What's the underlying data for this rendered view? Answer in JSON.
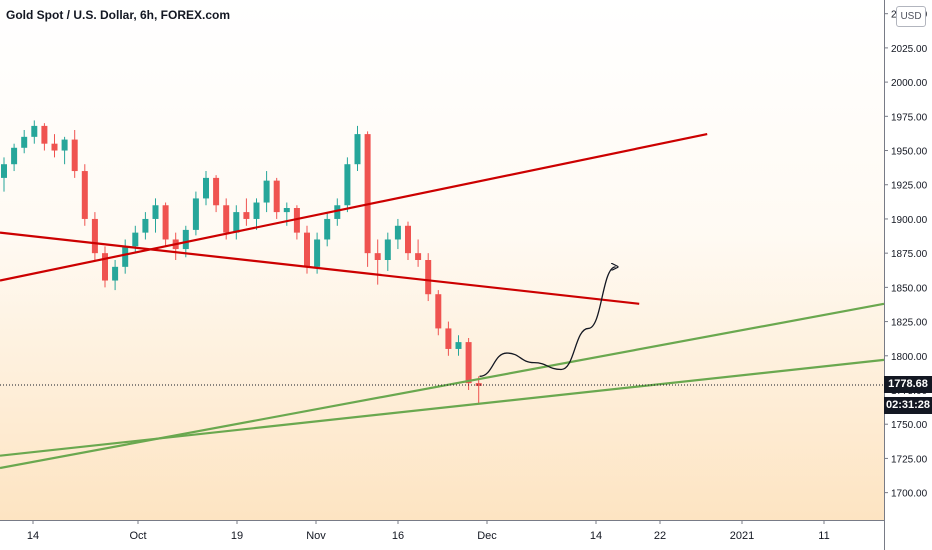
{
  "title": "Gold Spot / U.S. Dollar, 6h, FOREX.com",
  "currency": "USD",
  "last_price": "1778.68",
  "countdown": "02:31:28",
  "colors": {
    "up": "#26a69a",
    "down": "#ef5350",
    "resistance": "#cc0000",
    "support": "#6aa84f",
    "projection": "#131722"
  },
  "chart_data": {
    "type": "candlestick",
    "y_axis": {
      "range": [
        1680,
        2060
      ],
      "ticks": [
        1700,
        1725,
        1750,
        1775,
        1800,
        1825,
        1850,
        1875,
        1900,
        1925,
        1950,
        1975,
        2000,
        2025,
        2050
      ],
      "tick_labels": [
        "1700.00",
        "1725.00",
        "1750.00",
        "1775.00",
        "1800.00",
        "1825.00",
        "1850.00",
        "1875.00",
        "1900.00",
        "1925.00",
        "1950.00",
        "1975.00",
        "2000.00",
        "2025.00",
        "2050.00"
      ]
    },
    "x_axis": {
      "tick_labels": [
        "14",
        "Oct",
        "19",
        "Nov",
        "16",
        "Dec",
        "14",
        "22",
        "2021",
        "11"
      ]
    },
    "series": [
      {
        "values": [
          [
            1930,
            1945,
            1920,
            1940
          ],
          [
            1940,
            1955,
            1935,
            1952
          ],
          [
            1952,
            1965,
            1948,
            1960
          ],
          [
            1960,
            1972,
            1955,
            1968
          ],
          [
            1968,
            1970,
            1950,
            1955
          ],
          [
            1955,
            1962,
            1945,
            1950
          ],
          [
            1950,
            1960,
            1940,
            1958
          ],
          [
            1958,
            1965,
            1930,
            1935
          ],
          [
            1935,
            1940,
            1895,
            1900
          ],
          [
            1900,
            1905,
            1870,
            1875
          ],
          [
            1875,
            1880,
            1850,
            1855
          ],
          [
            1855,
            1870,
            1848,
            1865
          ],
          [
            1865,
            1885,
            1860,
            1880
          ],
          [
            1880,
            1895,
            1875,
            1890
          ],
          [
            1890,
            1905,
            1885,
            1900
          ],
          [
            1900,
            1915,
            1890,
            1910
          ],
          [
            1910,
            1912,
            1880,
            1885
          ],
          [
            1885,
            1890,
            1870,
            1878
          ],
          [
            1878,
            1895,
            1872,
            1892
          ],
          [
            1892,
            1920,
            1888,
            1915
          ],
          [
            1915,
            1935,
            1910,
            1930
          ],
          [
            1930,
            1932,
            1905,
            1910
          ],
          [
            1910,
            1915,
            1885,
            1890
          ],
          [
            1890,
            1910,
            1885,
            1905
          ],
          [
            1905,
            1915,
            1895,
            1900
          ],
          [
            1900,
            1915,
            1892,
            1912
          ],
          [
            1912,
            1935,
            1905,
            1928
          ],
          [
            1928,
            1930,
            1900,
            1905
          ],
          [
            1905,
            1912,
            1895,
            1908
          ],
          [
            1908,
            1910,
            1885,
            1890
          ],
          [
            1890,
            1895,
            1860,
            1865
          ],
          [
            1865,
            1890,
            1860,
            1885
          ],
          [
            1885,
            1905,
            1880,
            1900
          ],
          [
            1900,
            1915,
            1895,
            1910
          ],
          [
            1910,
            1945,
            1905,
            1940
          ],
          [
            1940,
            1968,
            1935,
            1962
          ],
          [
            1962,
            1964,
            1865,
            1875
          ],
          [
            1875,
            1885,
            1852,
            1870
          ],
          [
            1870,
            1890,
            1862,
            1885
          ],
          [
            1885,
            1900,
            1878,
            1895
          ],
          [
            1895,
            1898,
            1870,
            1875
          ],
          [
            1875,
            1885,
            1865,
            1870
          ],
          [
            1870,
            1875,
            1840,
            1845
          ],
          [
            1845,
            1848,
            1815,
            1820
          ],
          [
            1820,
            1825,
            1800,
            1805
          ],
          [
            1805,
            1815,
            1800,
            1810
          ],
          [
            1810,
            1813,
            1775,
            1780
          ],
          [
            1780,
            1785,
            1765,
            1778
          ]
        ]
      }
    ],
    "lines": [
      {
        "name": "resistance-descending",
        "from": [
          0,
          1890
        ],
        "to": [
          47,
          1838
        ]
      },
      {
        "name": "resistance-ascending",
        "from": [
          0,
          1855
        ],
        "to": [
          52,
          1962
        ]
      },
      {
        "name": "support-steep",
        "from": [
          0,
          1718
        ],
        "to": [
          65,
          1838
        ]
      },
      {
        "name": "support-shallow",
        "from": [
          0,
          1727
        ],
        "to": [
          65,
          1797
        ]
      }
    ],
    "projection": [
      [
        31,
        1785
      ],
      [
        33,
        1802
      ],
      [
        35,
        1795
      ],
      [
        37,
        1790
      ],
      [
        39,
        1820
      ],
      [
        41,
        1865
      ]
    ],
    "last_price_line": 1778.68
  }
}
